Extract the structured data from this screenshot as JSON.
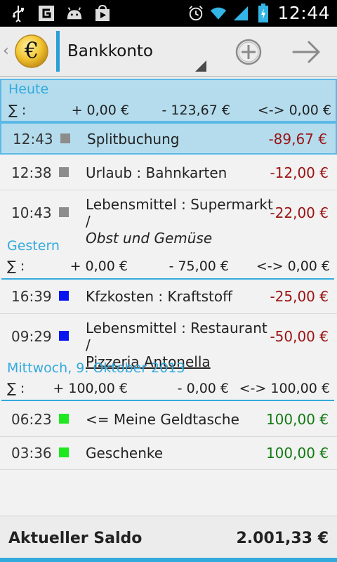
{
  "status_bar": {
    "time": "12:44",
    "left_icons": [
      "usb-icon",
      "g-icon",
      "android-icon",
      "store-icon"
    ],
    "right_icons": [
      "alarm-icon",
      "wifi-icon",
      "signal-icon",
      "battery-icon"
    ]
  },
  "action_bar": {
    "account": "Bankkonto",
    "logo_symbol": "€",
    "accent_color": "#2a9fd6"
  },
  "groups": [
    {
      "title": "Heute",
      "sum_symbol": "∑ :",
      "income": "+ 0,00 €",
      "expense": "- 123,67 €",
      "balance": "<-> 0,00 €",
      "rows": [
        {
          "time": "12:43",
          "square_color": "#8c8c8c",
          "text": "Splitbuchung",
          "text2": "",
          "amount": "-89,67 €",
          "sign": "neg",
          "highlighted": true
        },
        {
          "time": "12:38",
          "square_color": "#8c8c8c",
          "text": "Urlaub : Bahnkarten",
          "text2": "",
          "amount": "-12,00 €",
          "sign": "neg"
        },
        {
          "time": "10:43",
          "square_color": "#8c8c8c",
          "text": "Lebensmittel : Supermarkt /",
          "text2": "Obst und Gemüse",
          "amount": "-22,00 €",
          "sign": "neg"
        }
      ]
    },
    {
      "title": "Gestern",
      "sum_symbol": "∑ :",
      "income": "+ 0,00 €",
      "expense": "- 75,00 €",
      "balance": "<-> 0,00 €",
      "rows": [
        {
          "time": "16:39",
          "square_color": "#0a14f0",
          "text": "Kfzkosten : Kraftstoff",
          "text2": "",
          "amount": "-25,00 €",
          "sign": "neg"
        },
        {
          "time": "09:29",
          "square_color": "#0a14f0",
          "text": "Lebensmittel : Restaurant /",
          "text2": "Pizzeria Antonella",
          "amount": "-50,00 €",
          "sign": "neg"
        }
      ]
    },
    {
      "title": "Mittwoch, 9. Oktober 2013",
      "sum_symbol": "∑ :",
      "income": "+ 100,00 €",
      "expense": "- 0,00 €",
      "balance": "<-> 100,00 €",
      "rows": [
        {
          "time": "06:23",
          "square_color": "#1ee81e",
          "text": "<= Meine Geldtasche",
          "text2": "",
          "amount": "100,00 €",
          "sign": "pos"
        },
        {
          "time": "03:36",
          "square_color": "#1ee81e",
          "text": "Geschenke",
          "text2": "",
          "amount": "100,00 €",
          "sign": "pos"
        }
      ]
    }
  ],
  "footer": {
    "label": "Aktueller Saldo",
    "value": "2.001,33 €"
  },
  "colors": {
    "header_blue": "#33aadd",
    "negative": "#9b1313",
    "positive": "#117a11",
    "highlight_bg": "#b4dced"
  }
}
